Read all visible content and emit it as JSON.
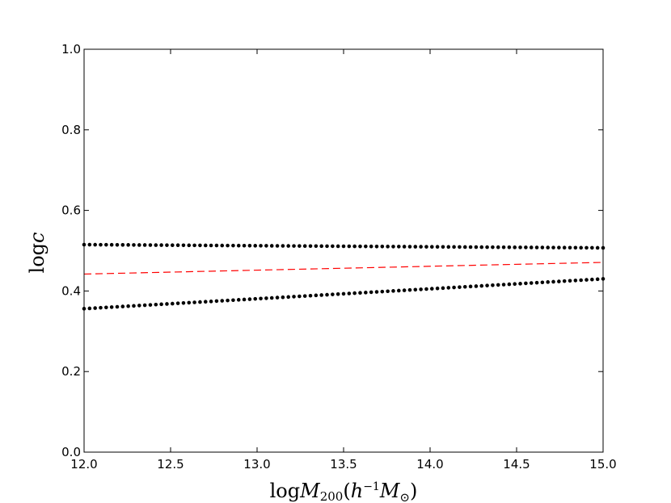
{
  "chart_data": {
    "type": "line",
    "xlabel": "logM200(h−1M⊙)",
    "ylabel": "logc",
    "xlim": [
      12.0,
      15.0
    ],
    "ylim": [
      0.0,
      1.0
    ],
    "x_ticks": [
      "12.0",
      "12.5",
      "13.0",
      "13.5",
      "14.0",
      "14.5",
      "15.0"
    ],
    "y_ticks": [
      "0.0",
      "0.2",
      "0.4",
      "0.6",
      "0.8",
      "1.0"
    ],
    "grid": false,
    "series": [
      {
        "style": "dotted",
        "color": "#000000",
        "x": [
          12.0,
          15.0
        ],
        "values": [
          0.515,
          0.507
        ]
      },
      {
        "style": "dashed",
        "color": "#ff0000",
        "x": [
          12.0,
          15.0
        ],
        "values": [
          0.442,
          0.471
        ]
      },
      {
        "style": "dotted",
        "color": "#000000",
        "x": [
          12.0,
          15.0
        ],
        "values": [
          0.356,
          0.43
        ]
      }
    ]
  }
}
